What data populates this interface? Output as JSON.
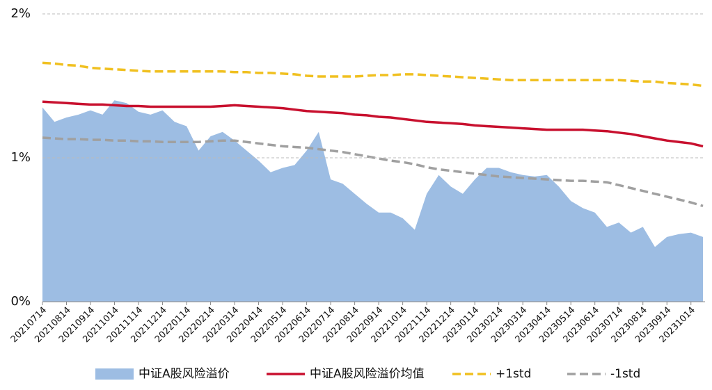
{
  "chart_data": {
    "type": "area",
    "categories": [
      "20210714",
      null,
      "20210814",
      null,
      "20210914",
      null,
      "20211014",
      null,
      "20211114",
      null,
      "20211214",
      null,
      "20220114",
      null,
      "20220214",
      null,
      "20220314",
      null,
      "20220414",
      null,
      "20220514",
      null,
      "20220614",
      null,
      "20220714",
      null,
      "20220814",
      null,
      "20220914",
      null,
      "20221014",
      null,
      "20221114",
      null,
      "20221214",
      null,
      "20230114",
      null,
      "20230214",
      null,
      "20230314",
      null,
      "20230414",
      null,
      "20230514",
      null,
      "20230614",
      null,
      "20230714",
      null,
      "20230814",
      null,
      "20230914",
      null,
      "20231014",
      null
    ],
    "series": [
      {
        "name": "中证A股风险溢价",
        "type": "area",
        "color": "#9dbde3",
        "values": [
          1.35,
          1.25,
          1.28,
          1.3,
          1.33,
          1.3,
          1.4,
          1.38,
          1.32,
          1.3,
          1.33,
          1.25,
          1.22,
          1.05,
          1.15,
          1.18,
          1.12,
          1.05,
          0.98,
          0.9,
          0.93,
          0.95,
          1.05,
          1.18,
          0.85,
          0.82,
          0.75,
          0.68,
          0.62,
          0.62,
          0.58,
          0.5,
          0.75,
          0.88,
          0.8,
          0.75,
          0.85,
          0.93,
          0.93,
          0.9,
          0.88,
          0.87,
          0.88,
          0.8,
          0.7,
          0.65,
          0.62,
          0.52,
          0.55,
          0.48,
          0.52,
          0.38,
          0.45,
          0.47,
          0.48,
          0.45
        ]
      },
      {
        "name": "中证A股风险溢价均值",
        "type": "line",
        "color": "#c8102e",
        "dashed": false,
        "values": [
          1.39,
          1.385,
          1.38,
          1.375,
          1.37,
          1.37,
          1.365,
          1.36,
          1.36,
          1.355,
          1.355,
          1.355,
          1.355,
          1.355,
          1.355,
          1.36,
          1.365,
          1.36,
          1.355,
          1.35,
          1.345,
          1.335,
          1.325,
          1.32,
          1.315,
          1.31,
          1.3,
          1.295,
          1.285,
          1.28,
          1.27,
          1.26,
          1.25,
          1.245,
          1.24,
          1.235,
          1.225,
          1.22,
          1.215,
          1.21,
          1.205,
          1.2,
          1.195,
          1.195,
          1.195,
          1.195,
          1.19,
          1.185,
          1.175,
          1.165,
          1.15,
          1.135,
          1.12,
          1.11,
          1.1,
          1.08
        ]
      },
      {
        "name": "+1std",
        "type": "line",
        "color": "#f0c020",
        "dashed": true,
        "values": [
          1.66,
          1.655,
          1.645,
          1.64,
          1.625,
          1.62,
          1.615,
          1.61,
          1.605,
          1.6,
          1.6,
          1.6,
          1.6,
          1.6,
          1.6,
          1.6,
          1.595,
          1.595,
          1.59,
          1.59,
          1.585,
          1.58,
          1.57,
          1.565,
          1.565,
          1.565,
          1.565,
          1.57,
          1.575,
          1.575,
          1.58,
          1.58,
          1.575,
          1.57,
          1.565,
          1.56,
          1.555,
          1.55,
          1.545,
          1.54,
          1.54,
          1.54,
          1.54,
          1.54,
          1.54,
          1.54,
          1.54,
          1.54,
          1.54,
          1.535,
          1.53,
          1.53,
          1.52,
          1.515,
          1.51,
          1.5
        ]
      },
      {
        "name": "-1std",
        "type": "line",
        "color": "#a0a0a0",
        "dashed": true,
        "values": [
          1.14,
          1.135,
          1.13,
          1.13,
          1.125,
          1.125,
          1.12,
          1.12,
          1.115,
          1.115,
          1.11,
          1.11,
          1.11,
          1.11,
          1.115,
          1.12,
          1.12,
          1.11,
          1.1,
          1.09,
          1.08,
          1.075,
          1.07,
          1.06,
          1.05,
          1.04,
          1.025,
          1.01,
          0.995,
          0.98,
          0.97,
          0.955,
          0.935,
          0.92,
          0.91,
          0.9,
          0.89,
          0.88,
          0.87,
          0.865,
          0.86,
          0.855,
          0.85,
          0.845,
          0.84,
          0.84,
          0.835,
          0.83,
          0.81,
          0.79,
          0.77,
          0.75,
          0.73,
          0.71,
          0.69,
          0.665
        ]
      }
    ],
    "ylim": [
      0,
      2
    ],
    "yticks": [
      {
        "value": 0,
        "label": "0%"
      },
      {
        "value": 1,
        "label": "1%"
      },
      {
        "value": 2,
        "label": "2%"
      }
    ],
    "grid": true,
    "legend": "bottom"
  }
}
